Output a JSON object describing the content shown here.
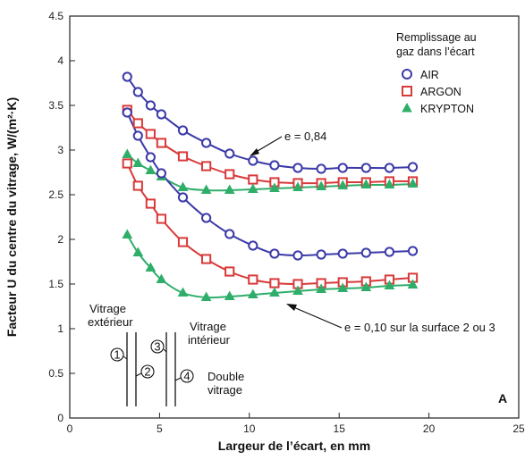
{
  "chart_data": {
    "type": "line",
    "xlabel": "Largeur de l’écart, en mm",
    "ylabel": "Facteur U du centre du vitrage, W/(m²·K)",
    "xlim": [
      0,
      25
    ],
    "ylim": [
      0,
      4.5
    ],
    "x_ticks": [
      "0",
      "5",
      "10",
      "15",
      "20",
      "25"
    ],
    "y_ticks": [
      "0",
      "0.5",
      "1",
      "1.5",
      "2",
      "2.5",
      "3",
      "3.5",
      "4",
      "4.5"
    ],
    "legend_title": "Remplissage au gaz dans l’écart",
    "legend_title_lines": [
      "Remplissage au",
      "gaz dans l’écart"
    ],
    "legend_position": "top-right",
    "grid": false,
    "panel_label": "A",
    "series": [
      {
        "name": "AIR",
        "group": "e = 0,84",
        "marker": "circle",
        "color": "#3b3aa8",
        "x": [
          3.2,
          3.8,
          4.5,
          5.1,
          6.3,
          7.6,
          8.9,
          10.2,
          11.4,
          12.7,
          14,
          15.2,
          16.5,
          17.8,
          19.1
        ],
        "values": [
          3.82,
          3.65,
          3.5,
          3.4,
          3.22,
          3.08,
          2.96,
          2.88,
          2.83,
          2.8,
          2.79,
          2.8,
          2.8,
          2.8,
          2.81
        ]
      },
      {
        "name": "ARGON",
        "group": "e = 0,84",
        "marker": "square",
        "color": "#d83a3a",
        "x": [
          3.2,
          3.8,
          4.5,
          5.1,
          6.3,
          7.6,
          8.9,
          10.2,
          11.4,
          12.7,
          14,
          15.2,
          16.5,
          17.8,
          19.1
        ],
        "values": [
          3.45,
          3.3,
          3.18,
          3.08,
          2.93,
          2.82,
          2.73,
          2.67,
          2.64,
          2.63,
          2.63,
          2.64,
          2.64,
          2.65,
          2.65
        ]
      },
      {
        "name": "KRYPTON",
        "group": "e = 0,84",
        "marker": "triangle",
        "color": "#2fae6a",
        "x": [
          3.2,
          3.8,
          4.5,
          5.1,
          6.3,
          7.6,
          8.9,
          10.2,
          11.4,
          12.7,
          14,
          15.2,
          16.5,
          17.8,
          19.1
        ],
        "values": [
          2.95,
          2.85,
          2.77,
          2.7,
          2.58,
          2.55,
          2.55,
          2.56,
          2.57,
          2.58,
          2.59,
          2.6,
          2.61,
          2.61,
          2.62
        ]
      },
      {
        "name": "AIR",
        "group": "e = 0,10 sur la surface 2 ou 3",
        "marker": "circle",
        "color": "#3b3aa8",
        "x": [
          3.2,
          3.8,
          4.5,
          5.1,
          6.3,
          7.6,
          8.9,
          10.2,
          11.4,
          12.7,
          14,
          15.2,
          16.5,
          17.8,
          19.1
        ],
        "values": [
          3.42,
          3.16,
          2.92,
          2.74,
          2.47,
          2.24,
          2.06,
          1.93,
          1.84,
          1.82,
          1.83,
          1.84,
          1.85,
          1.86,
          1.87
        ]
      },
      {
        "name": "ARGON",
        "group": "e = 0,10 sur la surface 2 ou 3",
        "marker": "square",
        "color": "#d83a3a",
        "x": [
          3.2,
          3.8,
          4.5,
          5.1,
          6.3,
          7.6,
          8.9,
          10.2,
          11.4,
          12.7,
          14,
          15.2,
          16.5,
          17.8,
          19.1
        ],
        "values": [
          2.85,
          2.6,
          2.4,
          2.23,
          1.97,
          1.78,
          1.64,
          1.55,
          1.51,
          1.5,
          1.51,
          1.52,
          1.53,
          1.55,
          1.57
        ]
      },
      {
        "name": "KRYPTON",
        "group": "e = 0,10 sur la surface 2 ou 3",
        "marker": "triangle",
        "color": "#2fae6a",
        "x": [
          3.2,
          3.8,
          4.5,
          5.1,
          6.3,
          7.6,
          8.9,
          10.2,
          11.4,
          12.7,
          14,
          15.2,
          16.5,
          17.8,
          19.1
        ],
        "values": [
          2.05,
          1.85,
          1.68,
          1.55,
          1.4,
          1.35,
          1.36,
          1.38,
          1.4,
          1.42,
          1.44,
          1.45,
          1.46,
          1.48,
          1.49
        ]
      }
    ],
    "annotations": [
      {
        "text": "e = 0,84",
        "arrow_to": [
          10.2,
          2.88
        ]
      },
      {
        "text": "e = 0,10 sur la surface 2 ou 3",
        "arrow_to": [
          12,
          1.5
        ]
      }
    ],
    "inset": {
      "outer_label": [
        "Vitrage",
        "extérieur"
      ],
      "inner_label": [
        "Vitrage",
        "intérieur"
      ],
      "double_label": [
        "Double",
        "vitrage"
      ],
      "surface_numbers": [
        "1",
        "2",
        "3",
        "4"
      ]
    }
  }
}
